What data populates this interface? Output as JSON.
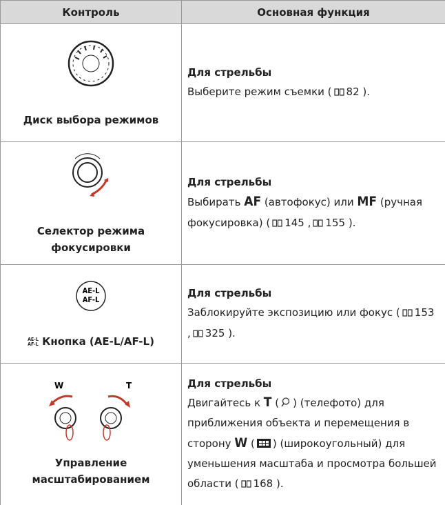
{
  "table": {
    "headers": [
      "Контроль",
      "Основная функция"
    ],
    "rows": [
      {
        "control": "Диск выбора режимов",
        "heading": "Для стрельбы",
        "text": [
          "Выберите режим съемки (",
          "82",
          ")."
        ]
      },
      {
        "control": "Селектор режима фокусировки",
        "heading": "Для стрельбы",
        "text": [
          "Выбирать",
          "AF",
          "(автофокус) или",
          "MF",
          "(ручная фокусировка) (",
          "145",
          ",",
          "155",
          ")."
        ]
      },
      {
        "control": "Кнопка (AE-L/AF-L)",
        "icon_text": [
          "AE-L",
          "AF-L"
        ],
        "heading": "Для стрельбы",
        "text": [
          "Заблокируйте экспозицию или фокус (",
          "153",
          ",",
          "325",
          ")."
        ]
      },
      {
        "control": "Управление масштабированием",
        "icon_text": [
          "W",
          "T"
        ],
        "heading": "Для стрельбы",
        "text": [
          "Двигайтесь к",
          "T",
          "(",
          ") (телефото) для приближения объекта и перемещения в сторону",
          "W",
          "(",
          ") (широкоугольный) для уменьшения масштаба и просмотра большей области (",
          "168",
          ")."
        ]
      }
    ]
  }
}
